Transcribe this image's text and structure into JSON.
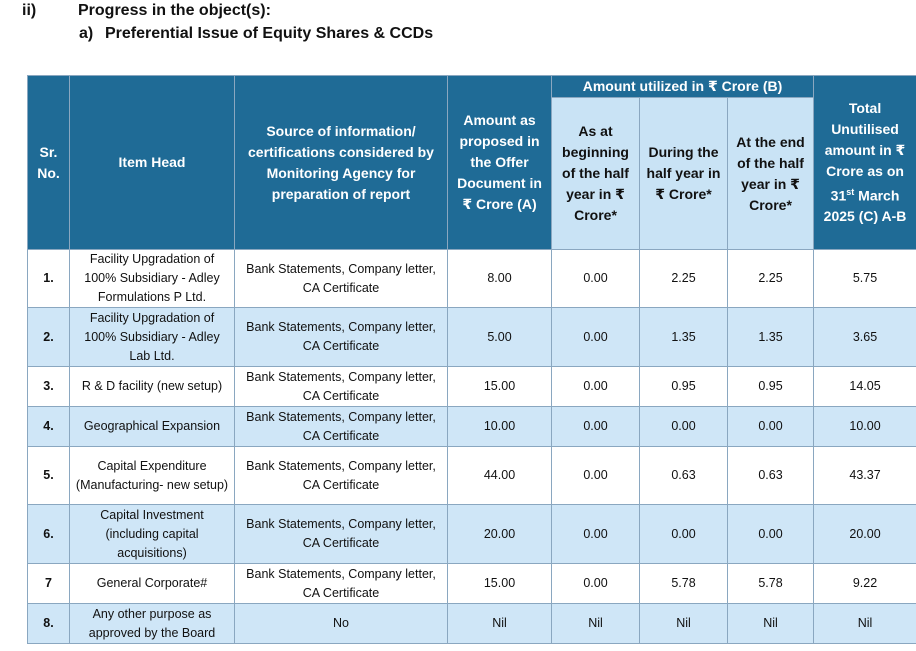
{
  "heading": {
    "number": "ii)",
    "title": "Progress in the object(s):",
    "sub_number": "a)",
    "sub_title": "Preferential Issue of Equity Shares & CCDs"
  },
  "table": {
    "headers": {
      "sr": "Sr. No.",
      "item": "Item Head",
      "source": "Source of information/ certifications considered by Monitoring Agency for preparation of report",
      "amount": "Amount as proposed in the Offer Document in ₹ Crore (A)",
      "utilized_group": "Amount utilized in ₹ Crore (B)",
      "beginning": "As at beginning of the half year in ₹ Crore*",
      "during": "During the half year in ₹ Crore*",
      "end": "At the end of the half year in ₹ Crore*",
      "total_pre": "Total Unutilised amount in ₹ Crore as on 31",
      "total_sup": "st",
      "total_post": " March 2025 (C) A-B"
    },
    "rows": [
      {
        "sr": "1.",
        "item": "Facility Upgradation of 100% Subsidiary - Adley Formulations P Ltd.",
        "source": "Bank Statements, Company letter, CA Certificate",
        "amount": "8.00",
        "beginning": "0.00",
        "during": "2.25",
        "end": "2.25",
        "total": "5.75"
      },
      {
        "sr": "2.",
        "item": "Facility Upgradation of 100% Subsidiary - Adley Lab Ltd.",
        "source": "Bank Statements, Company letter, CA Certificate",
        "amount": "5.00",
        "beginning": "0.00",
        "during": "1.35",
        "end": "1.35",
        "total": "3.65"
      },
      {
        "sr": "3.",
        "item": "R & D facility (new setup)",
        "source": "Bank Statements, Company letter, CA Certificate",
        "amount": "15.00",
        "beginning": "0.00",
        "during": "0.95",
        "end": "0.95",
        "total": "14.05"
      },
      {
        "sr": "4.",
        "item": "Geographical Expansion",
        "source": "Bank Statements, Company letter, CA Certificate",
        "amount": "10.00",
        "beginning": "0.00",
        "during": "0.00",
        "end": "0.00",
        "total": "10.00"
      },
      {
        "sr": "5.",
        "item": "Capital Expenditure (Manufacturing- new setup)",
        "source": "Bank Statements, Company letter, CA Certificate",
        "amount": "44.00",
        "beginning": "0.00",
        "during": "0.63",
        "end": "0.63",
        "total": "43.37"
      },
      {
        "sr": "6.",
        "item": "Capital Investment (including capital acquisitions)",
        "source": "Bank Statements, Company letter, CA Certificate",
        "amount": "20.00",
        "beginning": "0.00",
        "during": "0.00",
        "end": "0.00",
        "total": "20.00"
      },
      {
        "sr": "7",
        "item": "General Corporate#",
        "source": "Bank Statements, Company letter, CA Certificate",
        "amount": "15.00",
        "beginning": "0.00",
        "during": "5.78",
        "end": "5.78",
        "total": "9.22"
      },
      {
        "sr": "8.",
        "item": "Any other purpose as approved by the Board",
        "source": "No",
        "amount": "Nil",
        "beginning": "Nil",
        "during": "Nil",
        "end": "Nil",
        "total": "Nil"
      }
    ]
  },
  "colors": {
    "header_dark": "#1f6b96",
    "header_light": "#c9e3f5",
    "row_alt": "#cfe6f7"
  }
}
